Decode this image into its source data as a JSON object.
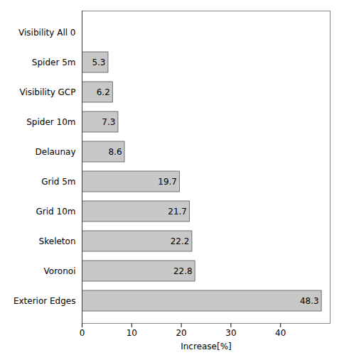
{
  "chart_data": {
    "type": "bar",
    "orientation": "horizontal",
    "categories": [
      "Visibility All 0",
      "Spider 5m",
      "Visibility GCP",
      "Spider 10m",
      "Delaunay",
      "Grid 5m",
      "Grid 10m",
      "Skeleton",
      "Voronoi",
      "Exterior Edges"
    ],
    "values": [
      0,
      5.3,
      6.2,
      7.3,
      8.6,
      19.7,
      21.7,
      22.2,
      22.8,
      48.3
    ],
    "color": "#c8c8c8",
    "xlabel": "Increase[%]",
    "xlim": [
      0,
      50
    ],
    "xticks": [
      0,
      10,
      20,
      30,
      40
    ],
    "data_labels": true
  }
}
